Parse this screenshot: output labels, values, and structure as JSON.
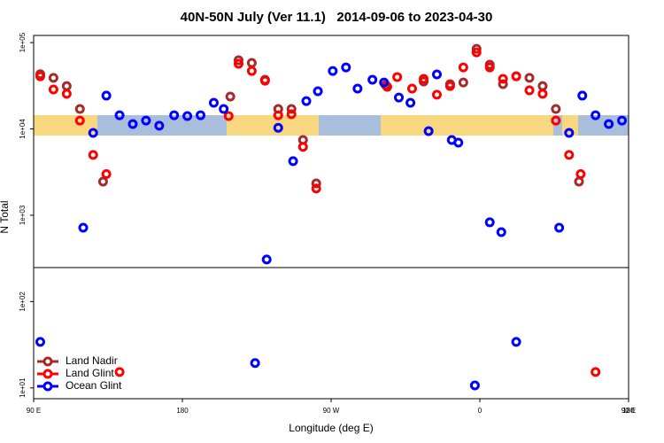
{
  "chart_data": {
    "type": "scatter",
    "title": "40N-50N July (Ver 11.1)   2014-09-06 to 2023-04-30",
    "x_label": "Longitude (deg E)",
    "y_label": "N Total",
    "log_y": true,
    "legend": "bottom-left",
    "xlim": [
      90,
      450
    ],
    "xticks": [
      {
        "value": 90,
        "label": "90 E"
      },
      180,
      {
        "value": 270,
        "label": "90 W"
      },
      {
        "value": 360,
        "label": "0"
      },
      {
        "value": 450,
        "label": "90 E"
      },
      {
        "value": 540,
        "label": "180"
      }
    ],
    "ylim": [
      7.5,
      121000
    ],
    "yticks": [
      {
        "value": 100000,
        "label": "1e+05"
      },
      {
        "value": 10000,
        "label": "1e+04"
      },
      {
        "value": 1000,
        "label": "1e+03"
      },
      {
        "value": 100,
        "label": "1e+02"
      },
      {
        "value": 10,
        "label": "1e+01"
      }
    ],
    "series": [
      {
        "name": "Land Nadir",
        "color": "#a52a2a",
        "x": [
          94,
          102,
          110,
          118,
          132,
          209,
          214,
          222,
          230,
          238,
          246,
          253,
          261,
          303,
          326,
          342,
          350,
          358,
          366,
          374,
          382,
          390,
          398,
          406,
          420
        ],
        "values": [
          43000,
          39000,
          31400,
          17000,
          2450,
          23700,
          62400,
          58100,
          37100,
          17000,
          17000,
          7450,
          2340,
          32200,
          35400,
          33000,
          34500,
          84700,
          55400,
          33000,
          40700,
          39000,
          31400,
          17000,
          2450
        ]
      },
      {
        "name": "Land Glint",
        "color": "#ff0000",
        "x": [
          94,
          102,
          110,
          118,
          126,
          134,
          208,
          214,
          222,
          230,
          238,
          246,
          253,
          261,
          304,
          310,
          319,
          326,
          334,
          342,
          350,
          358,
          366,
          374,
          382,
          390,
          398,
          406,
          414,
          421,
          142,
          430
        ],
        "values": [
          40700,
          28600,
          25500,
          12500,
          5000,
          3000,
          14100,
          56800,
          46900,
          36200,
          14400,
          14800,
          6200,
          2040,
          30700,
          39900,
          29300,
          38000,
          24900,
          31400,
          51600,
          77100,
          51600,
          38000,
          40700,
          28000,
          25500,
          12500,
          5000,
          3000,
          15.3,
          15.3
        ]
      },
      {
        "name": "Ocean Glint",
        "color": "#0000ff",
        "x": [
          94,
          120,
          126,
          134,
          142,
          150,
          158,
          166,
          175,
          183,
          191,
          199,
          205,
          224,
          231,
          238,
          247,
          255,
          262,
          271,
          279,
          286,
          295,
          302,
          311,
          318,
          329,
          334,
          343,
          347,
          357,
          366,
          373,
          382,
          408,
          414,
          422,
          430,
          438,
          446
        ],
        "values": [
          34.1,
          718,
          8990,
          24300,
          14400,
          11400,
          12500,
          10900,
          14400,
          14100,
          14400,
          20100,
          17000,
          19.4,
          307,
          10300,
          4230,
          21000,
          27300,
          46900,
          51600,
          29300,
          37100,
          34500,
          23100,
          20100,
          9420,
          42800,
          7450,
          6940,
          10.7,
          828,
          638,
          34.1,
          718,
          8990,
          24300,
          14400,
          11400,
          12500
        ]
      }
    ]
  }
}
